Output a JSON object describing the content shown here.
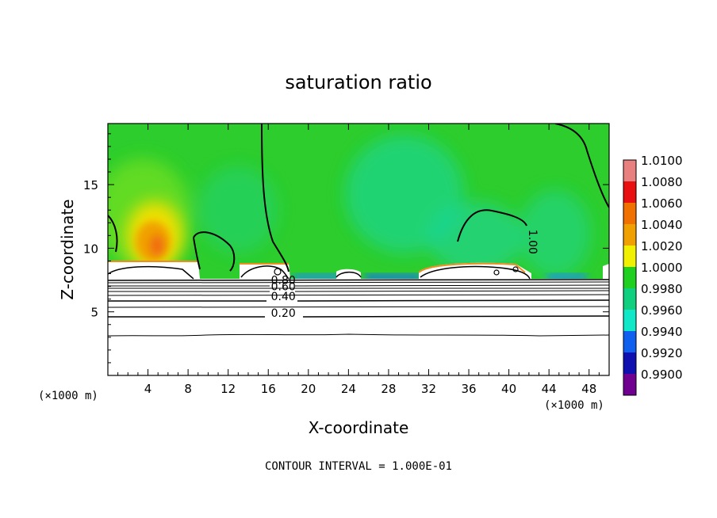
{
  "chart_data": {
    "type": "heatmap",
    "title": "saturation ratio",
    "xlabel": "X-coordinate",
    "ylabel": "Z-coordinate",
    "x_unit": "(×1000 m)",
    "z_unit": "(×1000 m)",
    "footer": "CONTOUR INTERVAL = 1.000E-01",
    "xlim": [
      0,
      50
    ],
    "ylim": [
      0,
      19.8
    ],
    "x_ticks": [
      4,
      8,
      12,
      16,
      20,
      24,
      28,
      32,
      36,
      40,
      44,
      48
    ],
    "y_ticks": [
      5,
      10,
      15
    ],
    "colorbar": {
      "levels": [
        "1.0100",
        "1.0080",
        "1.0060",
        "1.0040",
        "1.0020",
        "1.0000",
        "0.9980",
        "0.9960",
        "0.9940",
        "0.9920",
        "0.9900"
      ],
      "colors": [
        "#e88080",
        "#e81010",
        "#f07000",
        "#f0a000",
        "#f0f000",
        "#20d020",
        "#10d080",
        "#10e8c8",
        "#1060f0",
        "#1010b0",
        "#700090"
      ]
    },
    "contour_labels": [
      {
        "text": "0.80",
        "x": 17.5,
        "z": 7.2
      },
      {
        "text": "0.60",
        "x": 17.5,
        "z": 6.7
      },
      {
        "text": "0.40",
        "x": 17.5,
        "z": 5.9
      },
      {
        "text": "0.20",
        "x": 17.5,
        "z": 4.6
      },
      {
        "text": "1.00",
        "x": 42,
        "z": 10.5
      }
    ]
  }
}
